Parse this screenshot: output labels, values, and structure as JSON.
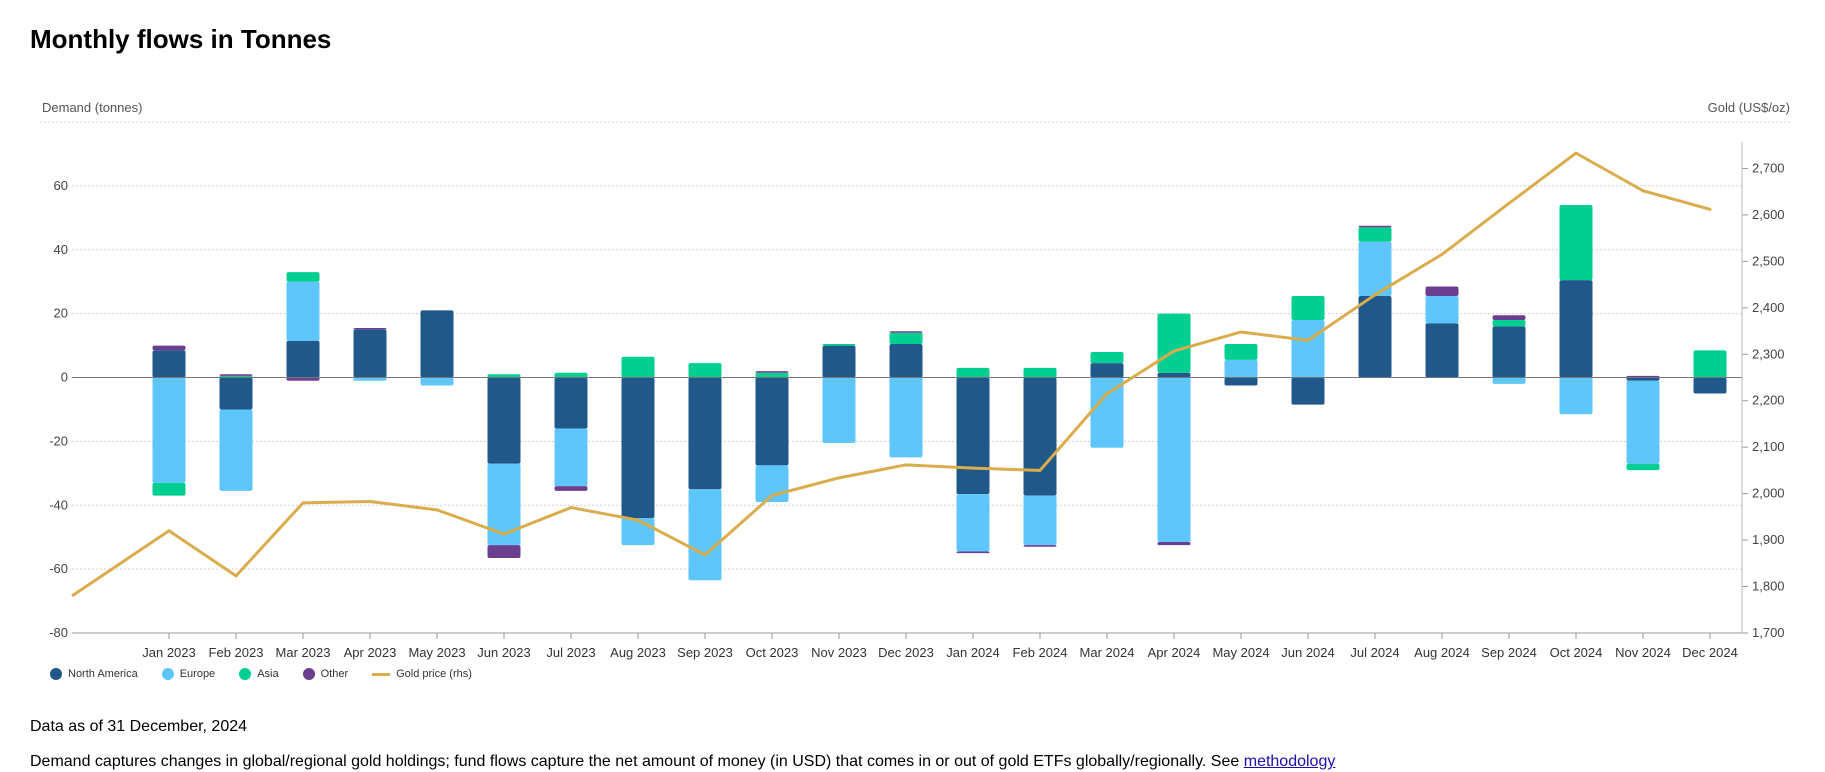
{
  "title": "Monthly flows in Tonnes",
  "legend": {
    "north_america": "North America",
    "europe": "Europe",
    "asia": "Asia",
    "other": "Other",
    "gold_price": "Gold price (rhs)"
  },
  "colors": {
    "north_america": "#1f5889",
    "europe": "#5ec6fa",
    "asia": "#00cf91",
    "other": "#6b3f8f",
    "gold": "#d9ad4d"
  },
  "notes": {
    "as_of": "Data as of 31 December, 2024",
    "description": "Demand captures changes in global/regional gold holdings; fund flows capture the net amount of money (in USD) that comes in or out of gold ETFs globally/regionally. See",
    "link_text": "methodology"
  },
  "chart_data": {
    "type": "bar",
    "stacked": true,
    "title": "Monthly flows in Tonnes",
    "ylabel": "Demand (tonnes)",
    "y2label": "Gold (US$/oz)",
    "ylim": [
      -80,
      80
    ],
    "yticks": [
      -80,
      -60,
      -40,
      -20,
      0,
      20,
      40,
      60
    ],
    "y2lim": [
      1700,
      2800
    ],
    "y2ticks": [
      1700,
      1800,
      1900,
      2000,
      2100,
      2200,
      2300,
      2400,
      2500,
      2600,
      2700
    ],
    "y2ticklabels": [
      "1,700",
      "1,800",
      "1,900",
      "2,000",
      "2,100",
      "2,200",
      "2,300",
      "2,400",
      "2,500",
      "2,600",
      "2,700"
    ],
    "categories": [
      "Jan 2023",
      "Feb 2023",
      "Mar 2023",
      "Apr 2023",
      "May 2023",
      "Jun 2023",
      "Jul 2023",
      "Aug 2023",
      "Sep 2023",
      "Oct 2023",
      "Nov 2023",
      "Dec 2023",
      "Jan 2024",
      "Feb 2024",
      "Mar 2024",
      "Apr 2024",
      "May 2024",
      "Jun 2024",
      "Jul 2024",
      "Aug 2024",
      "Sep 2024",
      "Oct 2024",
      "Nov 2024",
      "Dec 2024"
    ],
    "series": [
      {
        "key": "north_america",
        "name": "North America",
        "values": [
          8.5,
          -10,
          11.5,
          15,
          21,
          -27,
          -16,
          -44,
          -35,
          -27.5,
          10,
          10.5,
          -36.5,
          -37,
          4.5,
          1.5,
          -2.5,
          -8.5,
          25.5,
          17,
          16,
          30.5,
          -1,
          -5
        ]
      },
      {
        "key": "europe",
        "name": "Europe",
        "values": [
          -33,
          -25.5,
          18.5,
          -1,
          -2.5,
          -25.5,
          -18,
          -8.5,
          -28.5,
          -11.5,
          -20.5,
          -25,
          -18,
          -15.5,
          -22,
          -51.5,
          5.5,
          18,
          17,
          8.5,
          -2,
          -11.5,
          -26,
          0
        ]
      },
      {
        "key": "asia",
        "name": "Asia",
        "values": [
          -4,
          0.5,
          3,
          0,
          0,
          1,
          1.5,
          6.5,
          4.5,
          1.5,
          0.5,
          3.5,
          3,
          3,
          3.5,
          18.5,
          5,
          7.5,
          4.5,
          0,
          2,
          23.5,
          -2,
          8.5
        ]
      },
      {
        "key": "other",
        "name": "Other",
        "values": [
          1.5,
          0.5,
          -1,
          0.5,
          0,
          -4,
          -1.5,
          0,
          0,
          0.5,
          0,
          0.5,
          -0.5,
          -0.5,
          0,
          -1,
          0,
          0,
          0.5,
          3,
          1.5,
          0,
          0.5,
          0
        ]
      }
    ],
    "gold_price": {
      "name": "Gold price (rhs)",
      "start_value": 1780,
      "values": [
        1920,
        1823,
        1980,
        1983,
        1965,
        1913,
        1970,
        1943,
        1868,
        1996,
        2034,
        2062,
        2055,
        2050,
        2215,
        2307,
        2348,
        2330,
        2428,
        2515,
        2625,
        2733,
        2652,
        2612
      ]
    }
  }
}
